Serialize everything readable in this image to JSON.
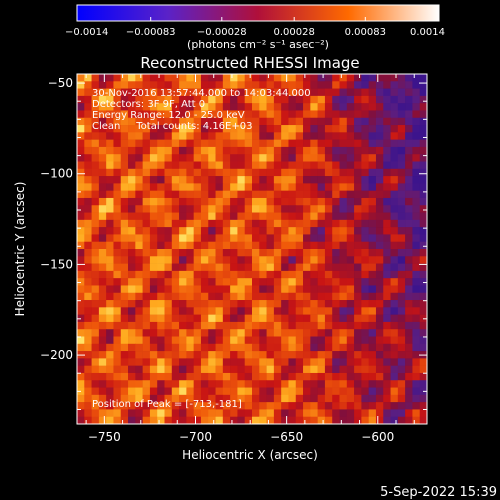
{
  "colorbar": {
    "ticks": [
      {
        "value": -0.0014,
        "label": "−0.0014"
      },
      {
        "value": -0.00083,
        "label": "−0.00083"
      },
      {
        "value": -0.00028,
        "label": "−0.00028"
      },
      {
        "value": 0.00028,
        "label": "0.00028"
      },
      {
        "value": 0.00083,
        "label": "0.00083"
      },
      {
        "value": 0.0014,
        "label": "0.0014"
      }
    ],
    "range": [
      -0.0014,
      0.0014
    ],
    "unit_label": "(photons cm⁻² s⁻¹ asec⁻²)"
  },
  "chart_data": {
    "type": "heatmap",
    "title": "Reconstructed RHESSI Image",
    "xlabel": "Heliocentric X (arcsec)",
    "ylabel": "Heliocentric Y (arcsec)",
    "xlim": [
      -765,
      -573
    ],
    "ylim": [
      -238,
      -45
    ],
    "x_ticks": [
      {
        "value": -750,
        "label": "−750"
      },
      {
        "value": -700,
        "label": "−700"
      },
      {
        "value": -650,
        "label": "−650"
      },
      {
        "value": -600,
        "label": "−600"
      }
    ],
    "y_ticks": [
      {
        "value": -50,
        "label": "−50"
      },
      {
        "value": -100,
        "label": "−100"
      },
      {
        "value": -150,
        "label": "−150"
      },
      {
        "value": -200,
        "label": "−200"
      }
    ],
    "annotations": [
      "30-Nov-2016 13:57:44.000 to 14:03:44.000",
      "Detectors: 3F 9F, Att 0",
      "Energy Range: 12.0 - 25.0 keV",
      "Clean     Total counts: 4.16E+03"
    ],
    "peak_label": "Position of Peak = [-713,-181]",
    "peak": [
      -713,
      -181
    ]
  },
  "footer": {
    "timestamp": "5-Sep-2022 15:39"
  }
}
